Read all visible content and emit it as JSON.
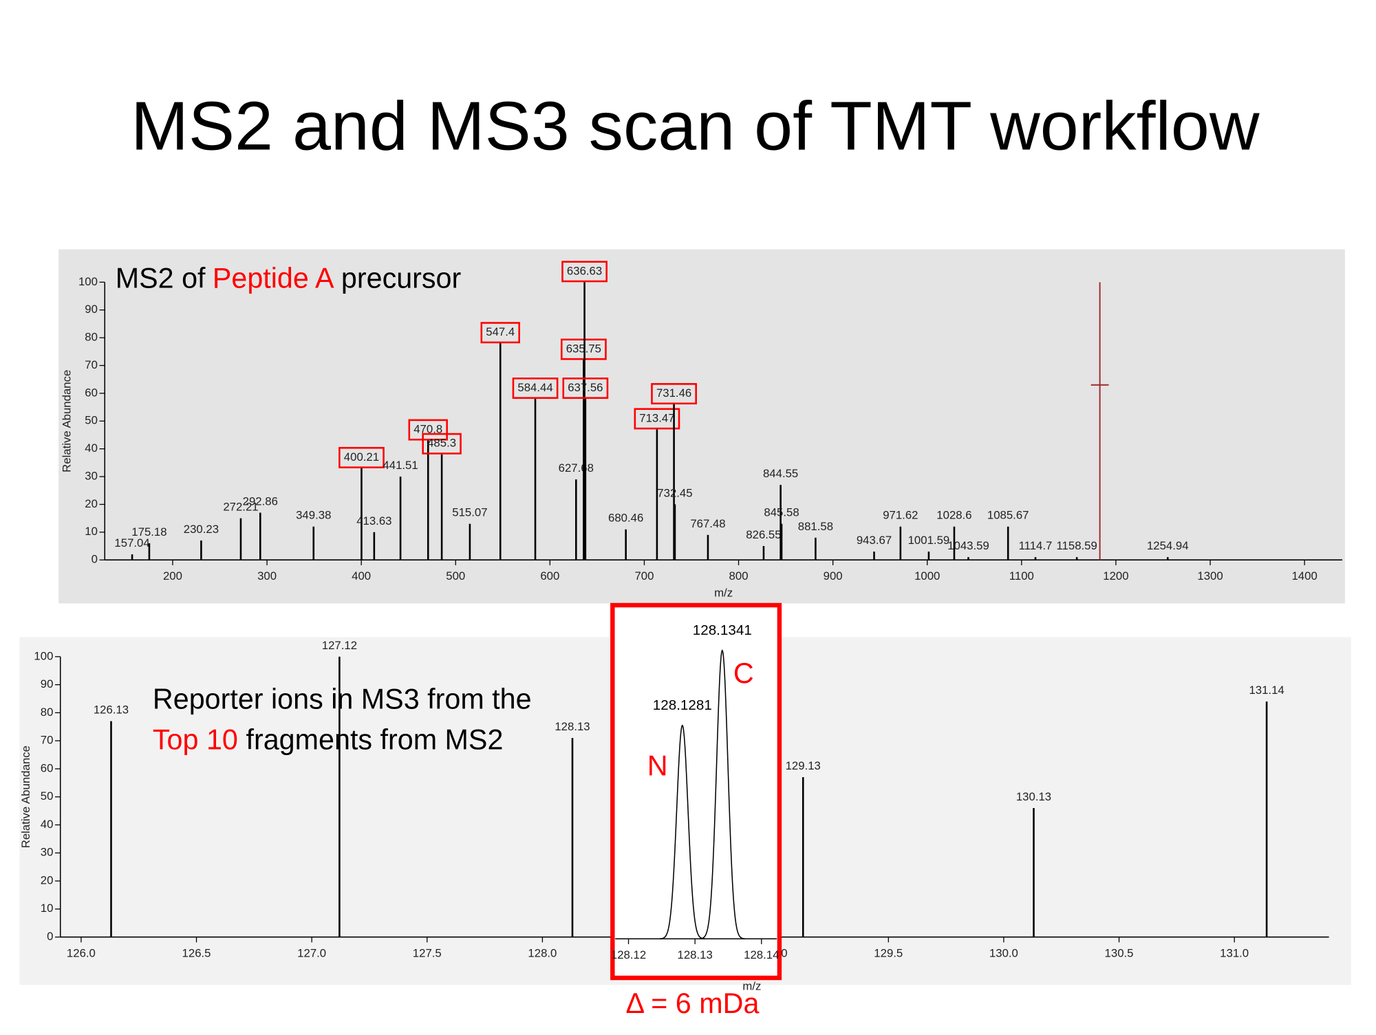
{
  "slide": {
    "title": "MS2 and MS3 scan of TMT workflow"
  },
  "chart_data": [
    {
      "type": "stick",
      "annotation": [
        "MS2 of",
        "Peptide A",
        "precursor"
      ],
      "x_label": "m/z",
      "y_label": "Relative Abundance",
      "xlim": [
        128,
        1440
      ],
      "ylim": [
        0,
        100
      ],
      "xticks": [
        200,
        300,
        400,
        500,
        600,
        700,
        800,
        900,
        1000,
        1100,
        1200,
        1300,
        1400
      ],
      "yticks": [
        0,
        10,
        20,
        30,
        40,
        50,
        60,
        70,
        80,
        90,
        100
      ],
      "x": [
        157.04,
        175.18,
        230.23,
        272.21,
        292.86,
        349.38,
        400.21,
        413.63,
        441.51,
        470.8,
        485.3,
        515.07,
        547.4,
        584.44,
        627.68,
        635.75,
        636.63,
        637.56,
        680.46,
        713.47,
        731.46,
        732.45,
        767.48,
        826.55,
        844.55,
        845.58,
        881.58,
        943.67,
        971.62,
        1001.59,
        1028.6,
        1043.59,
        1085.67,
        1114.7,
        1158.59,
        1254.94
      ],
      "values": [
        2,
        6,
        7,
        15,
        17,
        12,
        33,
        10,
        30,
        43,
        38,
        13,
        78,
        58,
        29,
        72,
        100,
        58,
        11,
        47,
        56,
        20,
        9,
        5,
        27,
        13,
        8,
        3,
        12,
        3,
        12,
        1,
        12,
        1,
        1,
        1
      ],
      "boxed": [
        false,
        false,
        false,
        false,
        false,
        false,
        true,
        false,
        false,
        true,
        true,
        false,
        true,
        true,
        false,
        true,
        true,
        true,
        false,
        true,
        true,
        false,
        false,
        false,
        false,
        false,
        false,
        false,
        false,
        false,
        false,
        false,
        false,
        false,
        false,
        false
      ],
      "color": "#000000",
      "box_color": "#ff0000",
      "marker": {
        "x": 1183,
        "value": 63,
        "color": "#a0282a"
      }
    },
    {
      "type": "stick",
      "annotation": [
        "Reporter ions in MS3 from the",
        "Top 10",
        "fragments from MS2"
      ],
      "y_label": "Relative Abundance",
      "xlim": [
        125.91,
        131.41
      ],
      "ylim": [
        0,
        100
      ],
      "xticks": [
        {
          "value": 126,
          "label": "126.0"
        },
        126.5,
        {
          "value": 127,
          "label": "127.0"
        },
        127.5,
        {
          "value": 128,
          "label": "128.0"
        },
        128.5,
        {
          "value": 129,
          "label": "129.0"
        },
        129.5,
        {
          "value": 130,
          "label": "130.0"
        },
        130.5,
        {
          "value": 131,
          "label": "131.0"
        }
      ],
      "yticks": [
        0,
        10,
        20,
        30,
        40,
        50,
        60,
        70,
        80,
        90,
        100
      ],
      "x": [
        126.13,
        127.12,
        128.13,
        129.13,
        130.13,
        131.14
      ],
      "values": [
        77,
        100,
        71,
        57,
        46,
        84
      ],
      "color": "#000000"
    },
    {
      "type": "profile",
      "x_label": "m/z",
      "xlim": [
        128.118,
        128.1423
      ],
      "ylim": [
        0,
        100
      ],
      "xticks": [
        128.12,
        128.13,
        128.14
      ],
      "x": [
        128.1281,
        128.1341
      ],
      "values": [
        74,
        100
      ],
      "peak_names": [
        "N",
        "C"
      ],
      "annotation": "Δ = 6 mDa",
      "color": "#000000",
      "frame_color": "#ff0000"
    }
  ]
}
